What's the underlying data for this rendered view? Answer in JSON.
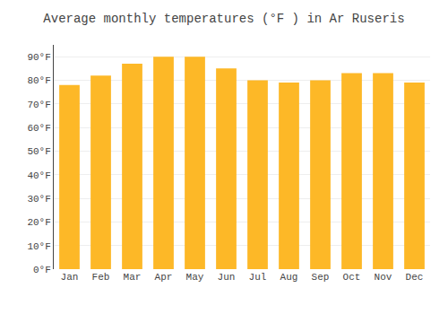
{
  "chart_data": {
    "type": "bar",
    "title": "Average monthly temperatures (°F ) in Ar Ruseris",
    "categories": [
      "Jan",
      "Feb",
      "Mar",
      "Apr",
      "May",
      "Jun",
      "Jul",
      "Aug",
      "Sep",
      "Oct",
      "Nov",
      "Dec"
    ],
    "values": [
      78,
      82,
      87,
      90,
      90,
      85,
      80,
      79,
      80,
      83,
      83,
      79
    ],
    "color": "#FDB827",
    "ylim": [
      0,
      95
    ],
    "yticks": [
      {
        "value": 0,
        "label": "0°F"
      },
      {
        "value": 10,
        "label": "10°F"
      },
      {
        "value": 20,
        "label": "20°F"
      },
      {
        "value": 30,
        "label": "30°F"
      },
      {
        "value": 40,
        "label": "40°F"
      },
      {
        "value": 50,
        "label": "50°F"
      },
      {
        "value": 60,
        "label": "60°F"
      },
      {
        "value": 70,
        "label": "70°F"
      },
      {
        "value": 80,
        "label": "80°F"
      },
      {
        "value": 90,
        "label": "90°F"
      }
    ],
    "grid": true
  }
}
